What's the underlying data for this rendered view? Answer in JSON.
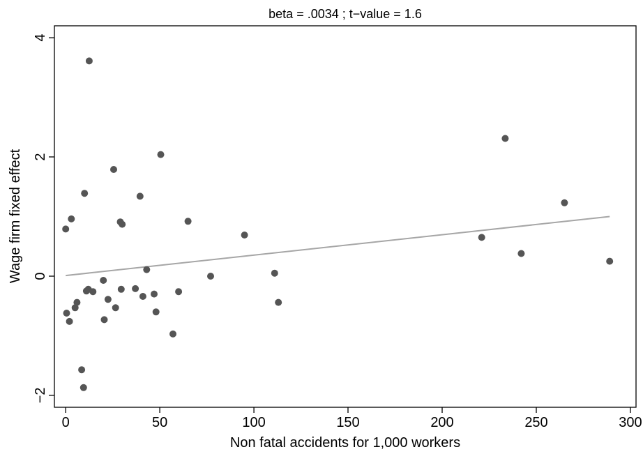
{
  "chart_data": {
    "type": "scatter",
    "title": "beta = .0034 ; t−value = 1.6",
    "xlabel": "Non fatal accidents for 1,000 workers",
    "ylabel": "Wage firm fixed effect",
    "xlim": [
      -6,
      303
    ],
    "ylim": [
      -2.2,
      4.2
    ],
    "xticks": [
      0,
      50,
      100,
      150,
      200,
      250,
      300
    ],
    "yticks": [
      -2,
      0,
      2,
      4
    ],
    "xtick_labels": [
      "0",
      "50",
      "100",
      "150",
      "200",
      "250",
      "300"
    ],
    "ytick_labels": [
      "−2",
      "0",
      "2",
      "4"
    ],
    "grid": false,
    "legend": "none",
    "point_color": "#555555",
    "line_color": "#a6a6a6",
    "series": [
      {
        "points": [
          {
            "x": 0,
            "y": 0.79
          },
          {
            "x": 0.5,
            "y": -0.62
          },
          {
            "x": 2,
            "y": -0.76
          },
          {
            "x": 3,
            "y": 0.96
          },
          {
            "x": 5,
            "y": -0.53
          },
          {
            "x": 6,
            "y": -0.44
          },
          {
            "x": 8.5,
            "y": -1.57
          },
          {
            "x": 9.5,
            "y": -1.87
          },
          {
            "x": 10,
            "y": 1.39
          },
          {
            "x": 11,
            "y": -0.25
          },
          {
            "x": 12,
            "y": -0.22
          },
          {
            "x": 12.5,
            "y": 3.61
          },
          {
            "x": 14.5,
            "y": -0.26
          },
          {
            "x": 20,
            "y": -0.07
          },
          {
            "x": 20.5,
            "y": -0.73
          },
          {
            "x": 22.5,
            "y": -0.39
          },
          {
            "x": 25.5,
            "y": 1.79
          },
          {
            "x": 26.5,
            "y": -0.53
          },
          {
            "x": 29,
            "y": 0.91
          },
          {
            "x": 29.5,
            "y": -0.22
          },
          {
            "x": 30,
            "y": 0.87
          },
          {
            "x": 37,
            "y": -0.21
          },
          {
            "x": 39.5,
            "y": 1.34
          },
          {
            "x": 41,
            "y": -0.34
          },
          {
            "x": 43,
            "y": 0.11
          },
          {
            "x": 47,
            "y": -0.3
          },
          {
            "x": 48,
            "y": -0.6
          },
          {
            "x": 50.5,
            "y": 2.04
          },
          {
            "x": 57,
            "y": -0.97
          },
          {
            "x": 60,
            "y": -0.26
          },
          {
            "x": 65,
            "y": 0.92
          },
          {
            "x": 77,
            "y": 0.0
          },
          {
            "x": 95,
            "y": 0.69
          },
          {
            "x": 111,
            "y": 0.05
          },
          {
            "x": 113,
            "y": -0.44
          },
          {
            "x": 221,
            "y": 0.65
          },
          {
            "x": 233.5,
            "y": 2.31
          },
          {
            "x": 242,
            "y": 0.38
          },
          {
            "x": 265,
            "y": 1.23
          },
          {
            "x": 289,
            "y": 0.25
          }
        ]
      }
    ],
    "fit_line": {
      "x": [
        0,
        289
      ],
      "y": [
        0.01,
        1.0
      ]
    }
  }
}
